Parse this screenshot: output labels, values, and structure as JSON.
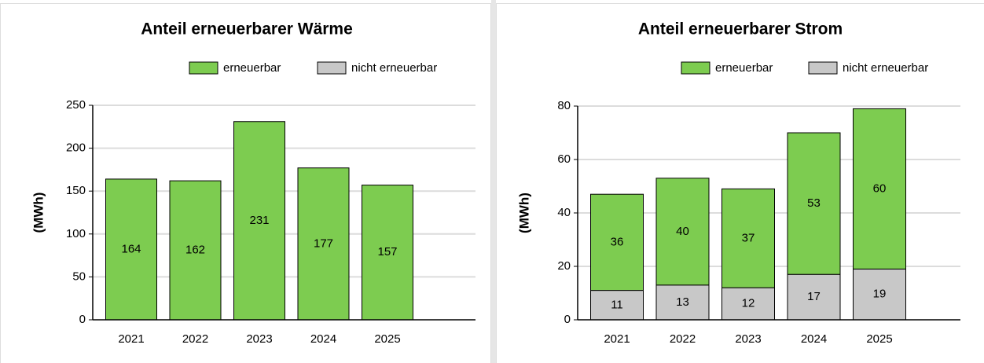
{
  "chart_data": [
    {
      "type": "bar",
      "stacked": true,
      "title": "Anteil erneuerbarer Wärme",
      "ylabel": "(MWh)",
      "categories": [
        "2021",
        "2022",
        "2023",
        "2024",
        "2025"
      ],
      "series": [
        {
          "name": "erneuerbar",
          "color": "#7dcc50",
          "values": [
            164,
            162,
            231,
            177,
            157
          ]
        },
        {
          "name": "nicht erneuerbar",
          "color": "#c8c8c8",
          "values": [
            0,
            0,
            0,
            0,
            0
          ]
        }
      ],
      "ylim": [
        0,
        250
      ],
      "yticks": [
        0,
        50,
        100,
        150,
        200,
        250
      ],
      "grid": true
    },
    {
      "type": "bar",
      "stacked": true,
      "title": "Anteil erneuerbarer Strom",
      "ylabel": "(MWh)",
      "categories": [
        "2021",
        "2022",
        "2023",
        "2024",
        "2025"
      ],
      "series": [
        {
          "name": "erneuerbar",
          "color": "#7dcc50",
          "values": [
            36,
            40,
            37,
            53,
            60
          ]
        },
        {
          "name": "nicht erneuerbar",
          "color": "#c8c8c8",
          "values": [
            11,
            13,
            12,
            17,
            19
          ]
        }
      ],
      "ylim": [
        0,
        80
      ],
      "yticks": [
        0,
        20,
        40,
        60,
        80
      ],
      "grid": true
    }
  ]
}
